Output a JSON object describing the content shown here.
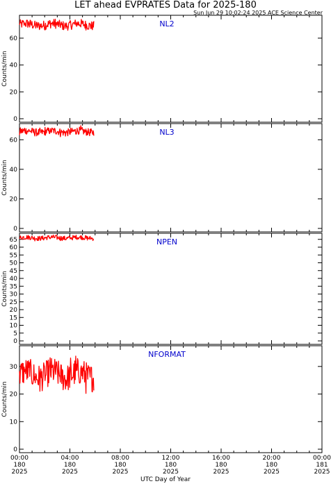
{
  "title": "LET ahead EVPRATES Data for 2025-180",
  "timestamp": "Sun Jun 29 10:02:24 2025 ACE Science Center",
  "chart_data": {
    "type": "line",
    "xlabel": "UTC Day of Year",
    "x_range_hours": [
      0,
      24
    ],
    "x_ticks": [
      {
        "hour": 0,
        "time": "00:00",
        "doy": "180",
        "year": "2025"
      },
      {
        "hour": 4,
        "time": "04:00",
        "doy": "180",
        "year": "2025"
      },
      {
        "hour": 8,
        "time": "08:00",
        "doy": "180",
        "year": "2025"
      },
      {
        "hour": 12,
        "time": "12:00",
        "doy": "180",
        "year": "2025"
      },
      {
        "hour": 16,
        "time": "16:00",
        "doy": "180",
        "year": "2025"
      },
      {
        "hour": 20,
        "time": "20:00",
        "doy": "180",
        "year": "2025"
      },
      {
        "hour": 24,
        "time": "00:00",
        "doy": "181",
        "year": "2025"
      }
    ],
    "data_end_hour": 5.9,
    "series_color": "#ff0000",
    "label_color": "#0000cc",
    "panels": [
      {
        "name": "NL2",
        "ylabel": "Counts/min",
        "ylim": [
          0,
          76
        ],
        "yticks": [
          0,
          20,
          40,
          60
        ],
        "mean": 70,
        "amp": 3.5,
        "min": 64,
        "max": 76
      },
      {
        "name": "NL3",
        "ylabel": "Counts/min",
        "ylim": [
          0,
          70
        ],
        "yticks": [
          0,
          20,
          40,
          60
        ],
        "mean": 65.5,
        "amp": 2.5,
        "min": 62,
        "max": 70
      },
      {
        "name": "NPEN",
        "ylabel": "Counts/min",
        "ylim": [
          0,
          68
        ],
        "yticks": [
          0,
          5,
          10,
          15,
          20,
          25,
          30,
          35,
          40,
          45,
          50,
          55,
          60,
          65
        ],
        "mean": 66,
        "amp": 1.5,
        "min": 64,
        "max": 68
      },
      {
        "name": "NFORMAT",
        "ylabel": "Counts/min",
        "ylim": [
          0,
          37
        ],
        "yticks": [
          0,
          10,
          20,
          30
        ],
        "mean": 27,
        "amp": 5,
        "min": 19,
        "max": 37
      }
    ]
  }
}
